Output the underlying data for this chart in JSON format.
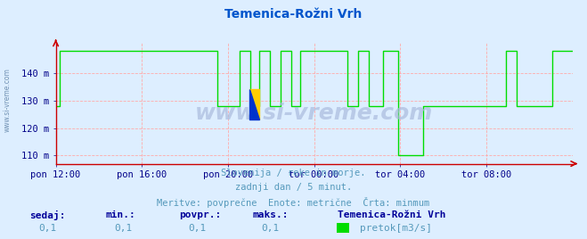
{
  "title": "Temenica-Rožni Vrh",
  "title_color": "#0055cc",
  "bg_color": "#ddeeff",
  "plot_bg_color": "#ddeeff",
  "grid_color_h": "#ffaaaa",
  "grid_color_v": "#ffaaaa",
  "axis_color": "#cc0000",
  "line_color": "#00dd00",
  "watermark_text": "www.si-vreme.com",
  "watermark_color": "#aabbdd",
  "left_watermark": "www.si-vreme.com",
  "left_wm_color": "#6688aa",
  "tick_color": "#000088",
  "ylim": [
    107,
    151
  ],
  "yticks": [
    110,
    120,
    130,
    140
  ],
  "ytick_labels": [
    "110 m",
    "120 m",
    "130 m",
    "140 m"
  ],
  "xtick_labels": [
    "pon 12:00",
    "pon 16:00",
    "pon 20:00",
    "tor 00:00",
    "tor 04:00",
    "tor 08:00"
  ],
  "xtick_positions": [
    0.0,
    0.1667,
    0.3333,
    0.5,
    0.6667,
    0.8333
  ],
  "subtitle_lines": [
    "Slovenija / reke in morje.",
    "zadnji dan / 5 minut.",
    "Meritve: povprečne  Enote: metrične  Črta: minmum"
  ],
  "subtitle_color": "#5599bb",
  "footer_labels": [
    "sedaj:",
    "min.:",
    "povpr.:",
    "maks.:"
  ],
  "footer_values": [
    "0,1",
    "0,1",
    "0,1",
    "0,1"
  ],
  "footer_label_color": "#000099",
  "footer_value_color": "#5599bb",
  "legend_title": "Temenica-Rožni Vrh",
  "legend_label": "pretok[m3/s]",
  "legend_color": "#00dd00",
  "logo_yellow": "#ffcc00",
  "logo_blue": "#0033cc",
  "figsize": [
    6.59,
    2.68
  ],
  "dpi": 100,
  "high_val": 148.0,
  "mid_val": 128.0,
  "low_val": 110.0
}
